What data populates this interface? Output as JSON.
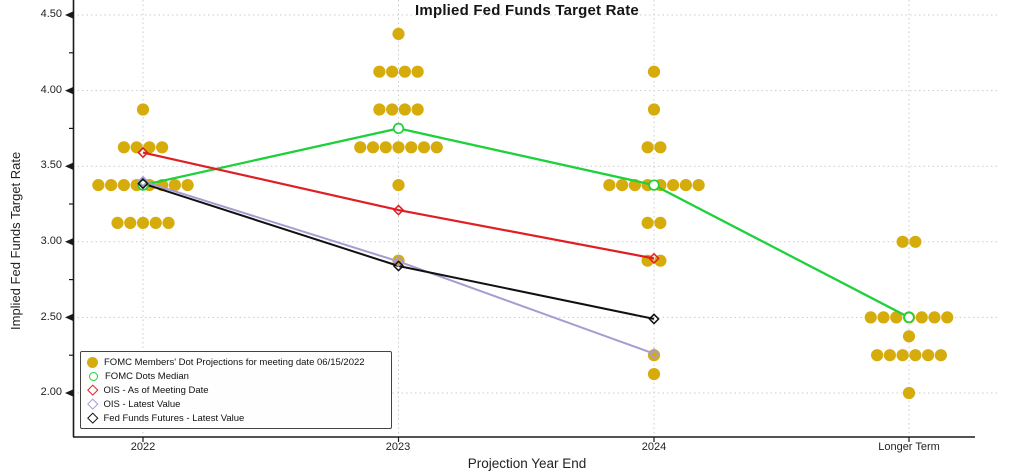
{
  "title": "Implied Fed Funds Target Rate",
  "axes": {
    "y_label": "Implied Fed Funds Target Rate",
    "x_label": "Projection Year End",
    "y_ticks": [
      "4.50",
      "4.00",
      "3.50",
      "3.00",
      "2.50",
      "2.00"
    ],
    "x_ticks": [
      "2022",
      "2023",
      "2024",
      "Longer Term"
    ]
  },
  "legend": {
    "items": [
      {
        "label": "FOMC Members' Dot Projections for meeting date 06/15/2022",
        "marker": "filled-circle",
        "color": "#d6ac0d"
      },
      {
        "label": "FOMC Dots Median",
        "marker": "open-circle",
        "color": "#1ed13b"
      },
      {
        "label": "OIS - As of Meeting Date",
        "marker": "open-diamond",
        "color": "#e01f25"
      },
      {
        "label": "OIS - Latest Value",
        "marker": "open-diamond",
        "color": "#a89bd0"
      },
      {
        "label": "Fed Funds Futures - Latest Value",
        "marker": "open-diamond",
        "color": "#111111"
      }
    ]
  },
  "chart_data": {
    "type": "scatter",
    "subtype": "FOMC dot plot with median and market-implied lines",
    "title": "Implied Fed Funds Target Rate",
    "xlabel": "Projection Year End",
    "ylabel": "Implied Fed Funds Target Rate",
    "categories": [
      "2022",
      "2023",
      "2024",
      "Longer Term"
    ],
    "y_axis": {
      "min": 2.0,
      "max": 4.5,
      "major_ticks": [
        4.5,
        4.0,
        3.5,
        3.0,
        2.5,
        2.0
      ],
      "minor_ticks": [
        4.25,
        3.75,
        3.25,
        2.75,
        2.25
      ],
      "grid": "dashed"
    },
    "colors": {
      "dots": "#d6ac0d",
      "grid": "#cccccc",
      "axis": "#1a1a1a"
    },
    "dot_projections": {
      "2022": [
        {
          "rate": 3.875,
          "count": 1
        },
        {
          "rate": 3.625,
          "count": 4
        },
        {
          "rate": 3.375,
          "count": 8
        },
        {
          "rate": 3.125,
          "count": 5
        }
      ],
      "2023": [
        {
          "rate": 4.375,
          "count": 1
        },
        {
          "rate": 4.125,
          "count": 4
        },
        {
          "rate": 3.875,
          "count": 4
        },
        {
          "rate": 3.625,
          "count": 7
        },
        {
          "rate": 3.375,
          "count": 1
        },
        {
          "rate": 2.875,
          "count": 1
        }
      ],
      "2024": [
        {
          "rate": 4.125,
          "count": 1
        },
        {
          "rate": 3.875,
          "count": 1
        },
        {
          "rate": 3.625,
          "count": 2
        },
        {
          "rate": 3.375,
          "count": 8
        },
        {
          "rate": 3.125,
          "count": 2
        },
        {
          "rate": 2.875,
          "count": 2
        },
        {
          "rate": 2.25,
          "count": 1
        },
        {
          "rate": 2.125,
          "count": 1
        }
      ],
      "Longer Term": [
        {
          "rate": 3.0,
          "count": 2
        },
        {
          "rate": 2.5,
          "count": 7
        },
        {
          "rate": 2.375,
          "count": 1
        },
        {
          "rate": 2.25,
          "count": 6
        },
        {
          "rate": 2.0,
          "count": 1
        }
      ]
    },
    "series": [
      {
        "name": "FOMC Dots Median",
        "color": "#1ed13b",
        "marker": "open-circle",
        "width": 2.3,
        "values": [
          3.375,
          3.75,
          3.375,
          2.5
        ]
      },
      {
        "name": "OIS - As of Meeting Date",
        "color": "#e01f25",
        "marker": "open-diamond",
        "width": 2.2,
        "values": [
          3.59,
          3.21,
          2.89,
          null
        ]
      },
      {
        "name": "OIS - Latest Value",
        "color": "#a89bd0",
        "marker": "open-diamond",
        "width": 2.0,
        "values": [
          3.4,
          2.87,
          2.26,
          null
        ]
      },
      {
        "name": "Fed Funds Futures - Latest Value",
        "color": "#111111",
        "marker": "open-diamond",
        "width": 2.0,
        "values": [
          3.385,
          2.84,
          2.49,
          null
        ]
      }
    ],
    "legend_position": "lower-left"
  }
}
